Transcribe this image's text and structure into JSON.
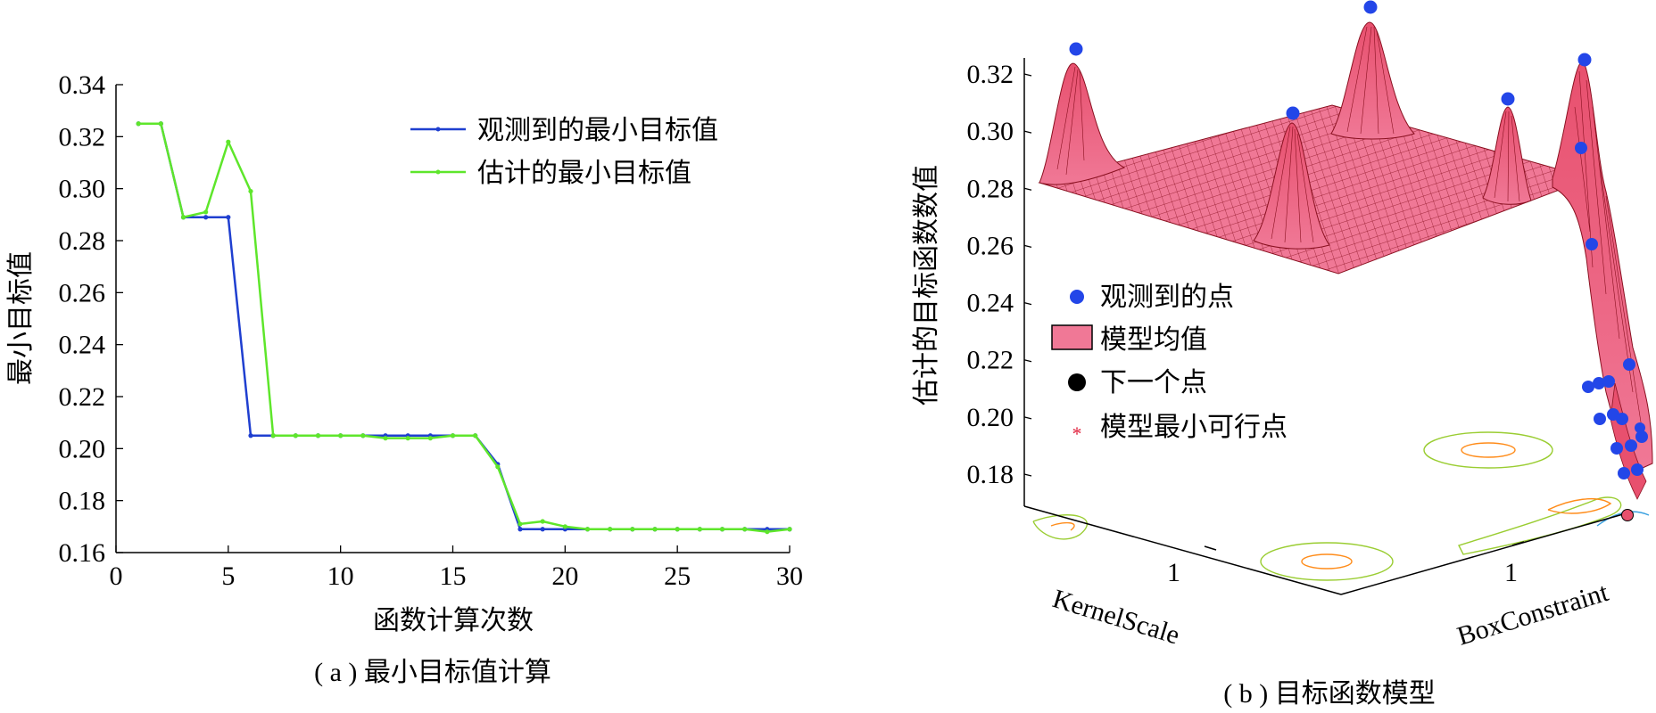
{
  "chart_data": [
    {
      "type": "line",
      "panel_caption": "( a ) 最小目标值计算",
      "xlabel": "函数计算次数",
      "ylabel": "最小目标值",
      "xlim": [
        0,
        30
      ],
      "ylim": [
        0.16,
        0.34
      ],
      "x_ticks": [
        0,
        5,
        10,
        15,
        20,
        25,
        30
      ],
      "y_ticks": [
        0.16,
        0.18,
        0.2,
        0.22,
        0.24,
        0.26,
        0.28,
        0.3,
        0.32,
        0.34
      ],
      "y_tick_labels": [
        "0.16",
        "0.18",
        "0.20",
        "0.22",
        "0.24",
        "0.26",
        "0.28",
        "0.30",
        "0.32",
        "0.34"
      ],
      "grid": false,
      "legend_position": "top-right",
      "x": [
        1,
        2,
        3,
        4,
        5,
        6,
        7,
        8,
        9,
        10,
        11,
        12,
        13,
        14,
        15,
        16,
        17,
        18,
        19,
        20,
        21,
        22,
        23,
        24,
        25,
        26,
        27,
        28,
        29,
        30
      ],
      "series": [
        {
          "name": "观测到的最小目标值",
          "color": "#1f3fd0",
          "values": [
            0.325,
            0.325,
            0.289,
            0.289,
            0.289,
            0.205,
            0.205,
            0.205,
            0.205,
            0.205,
            0.205,
            0.205,
            0.205,
            0.205,
            0.205,
            0.205,
            0.194,
            0.169,
            0.169,
            0.169,
            0.169,
            0.169,
            0.169,
            0.169,
            0.169,
            0.169,
            0.169,
            0.169,
            0.169,
            0.169
          ]
        },
        {
          "name": "估计的最小目标值",
          "color": "#5ee62b",
          "values": [
            0.325,
            0.325,
            0.289,
            0.291,
            0.318,
            0.299,
            0.205,
            0.205,
            0.205,
            0.205,
            0.205,
            0.204,
            0.204,
            0.204,
            0.205,
            0.205,
            0.193,
            0.171,
            0.172,
            0.17,
            0.169,
            0.169,
            0.169,
            0.169,
            0.169,
            0.169,
            0.169,
            0.169,
            0.168,
            0.169
          ]
        }
      ]
    },
    {
      "type": "surface",
      "panel_caption": "( b ) 目标函数模型",
      "zlabel": "估计的目标函数数值",
      "xlabel": "KernelScale",
      "ylabel": "BoxConstraint",
      "zlim": [
        0.17,
        0.33
      ],
      "z_ticks": [
        0.18,
        0.2,
        0.22,
        0.24,
        0.26,
        0.28,
        0.3,
        0.32
      ],
      "z_tick_labels": [
        "0.18",
        "0.20",
        "0.22",
        "0.24",
        "0.26",
        "0.28",
        "0.30",
        "0.32"
      ],
      "x_tick_label": "1",
      "y_tick_label": "1",
      "legend_position": "middle-left",
      "legend": [
        {
          "label": "观测到的点",
          "marker": "blue-dot",
          "color": "#2346e8"
        },
        {
          "label": "模型均值",
          "marker": "pink-patch",
          "color": "#f0789a"
        },
        {
          "label": "下一个点",
          "marker": "black-dot",
          "color": "#000000"
        },
        {
          "label": "模型最小可行点",
          "marker": "red-asterisk",
          "color": "#e0203c"
        }
      ],
      "surface_color": "#f0789a",
      "mesh_color": "#8a1020",
      "contour_colors": [
        "#9acd32",
        "#ff8c1a",
        "#3aa0e0"
      ]
    }
  ]
}
